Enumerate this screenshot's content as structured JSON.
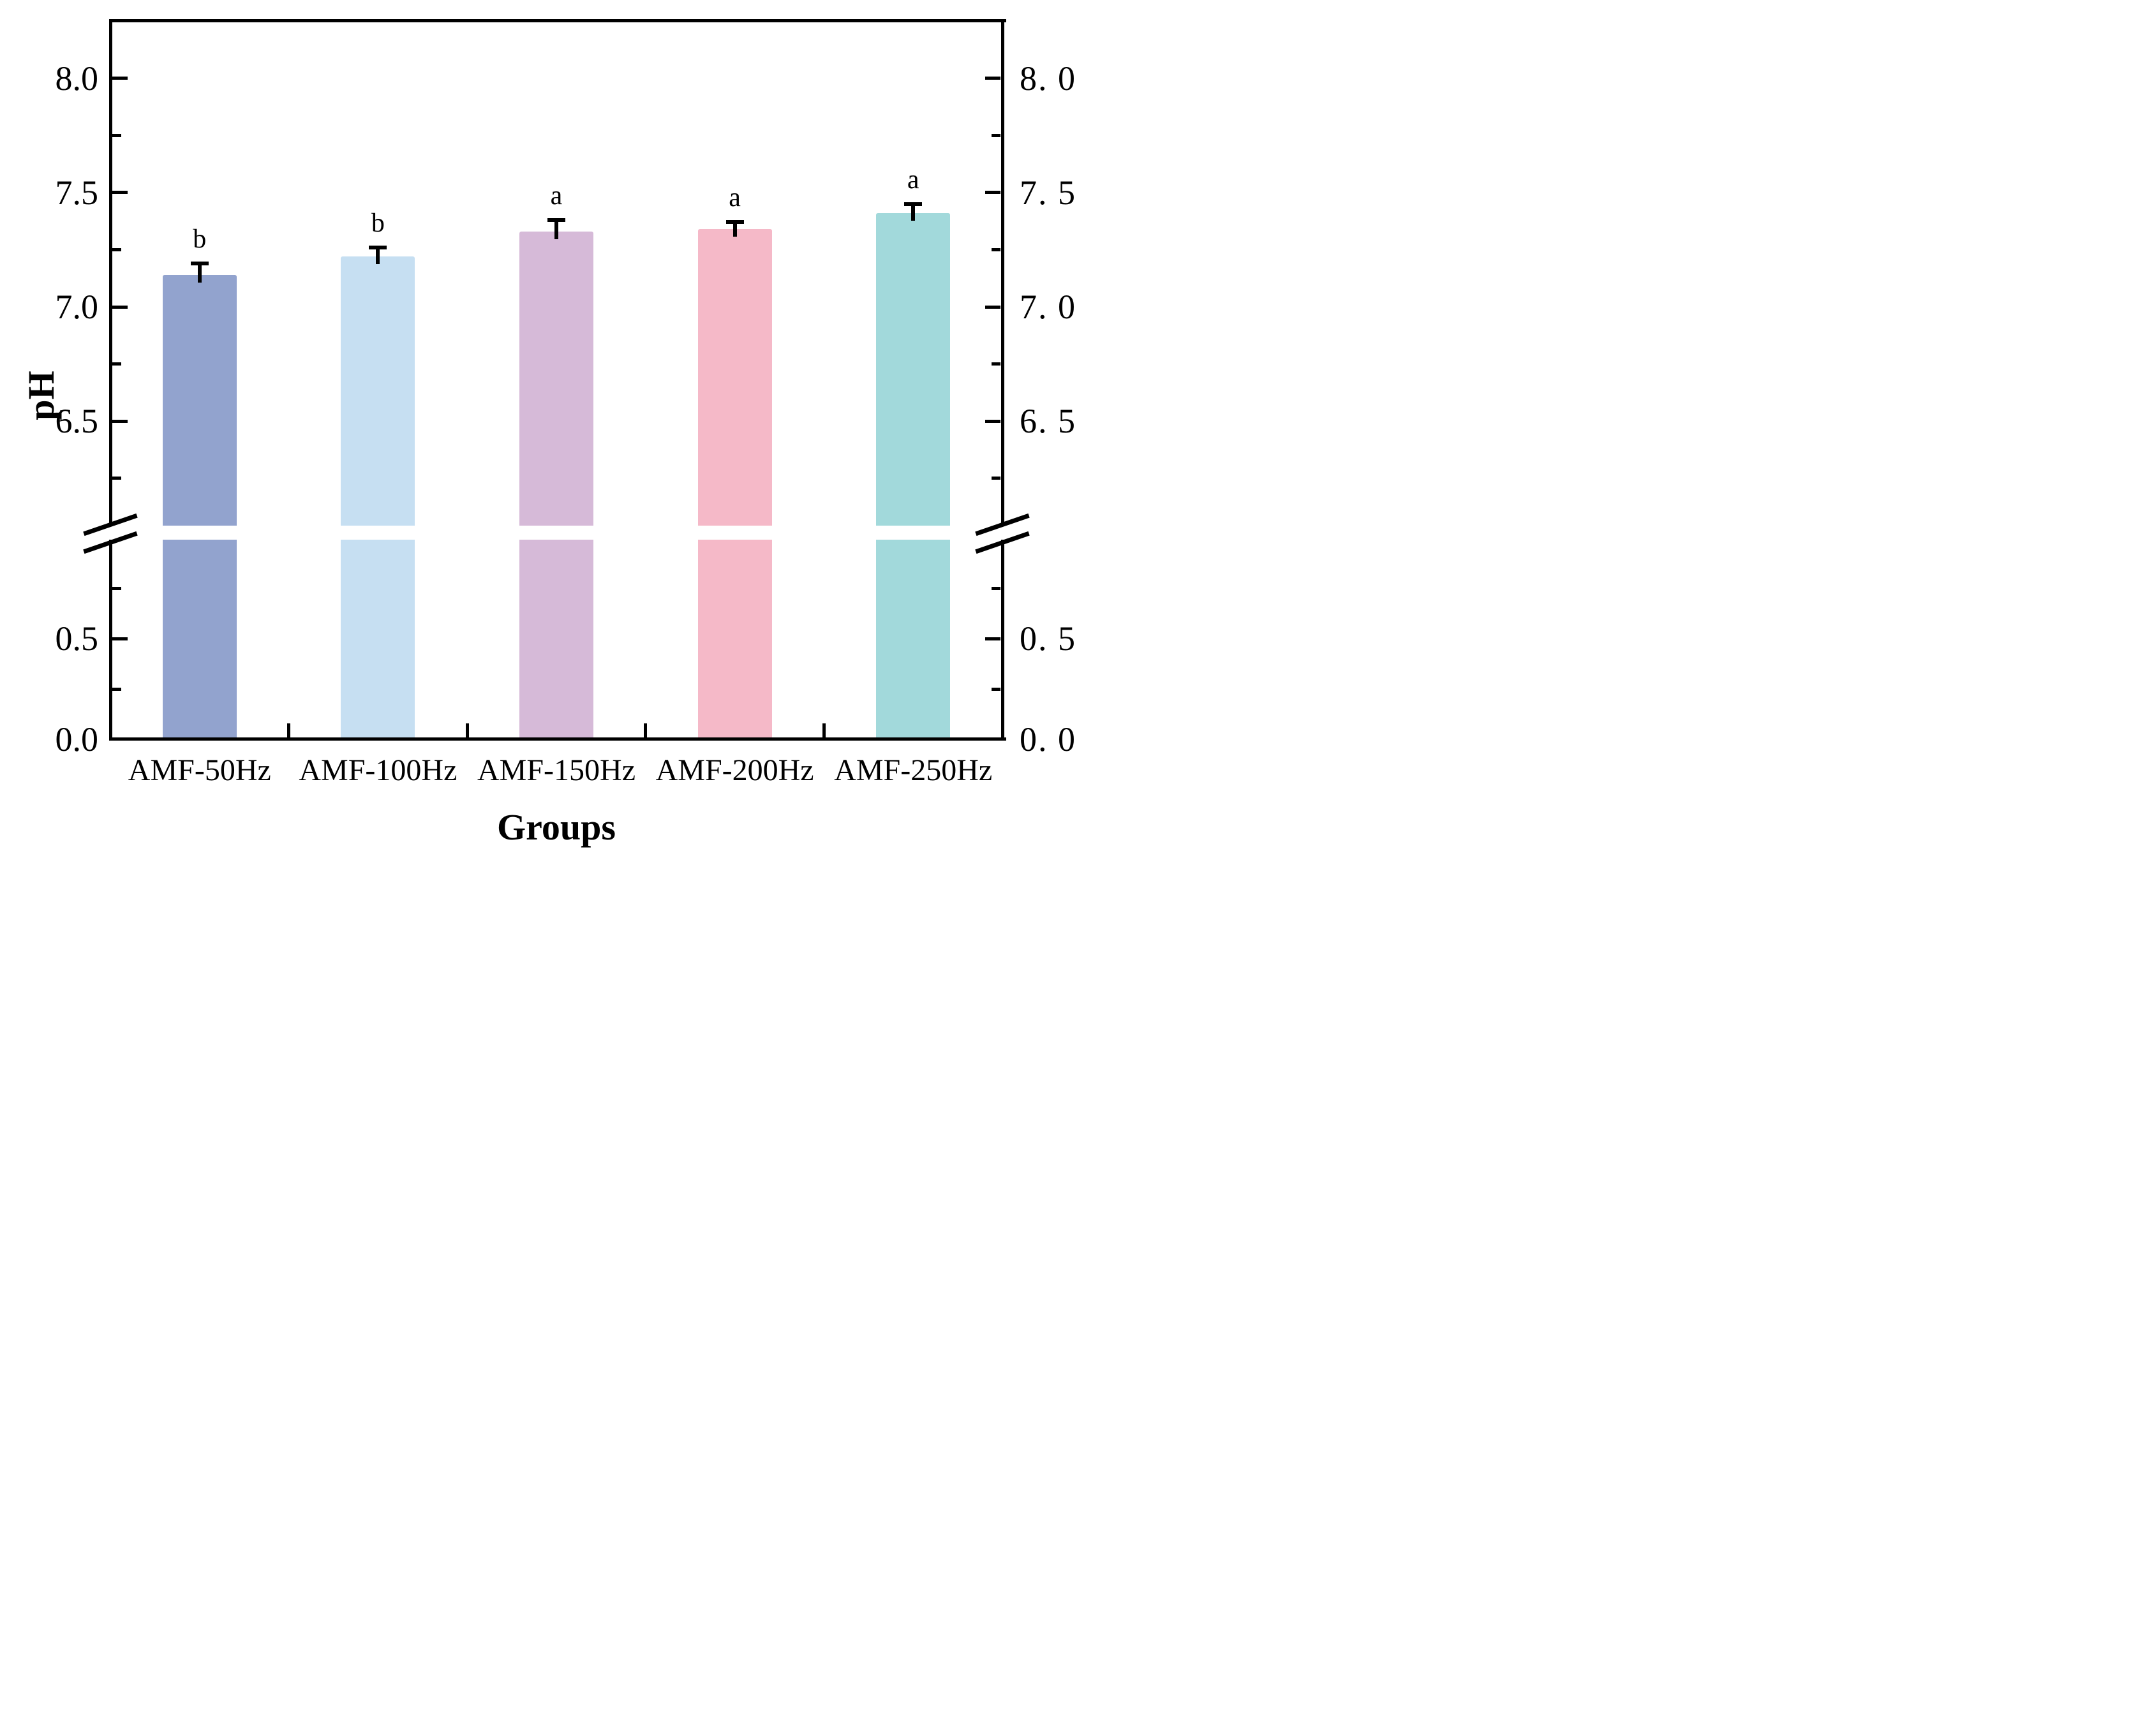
{
  "figure": {
    "ylabel": "pH",
    "xlabel": "Groups"
  },
  "axes": {
    "left_tick_labels": [
      "8.0",
      "7.5",
      "7.0",
      "6.5",
      "0.5",
      "0.0"
    ],
    "right_tick_labels": [
      "8. 0",
      "7. 5",
      "7. 0",
      "6. 5",
      "0. 5",
      "0. 0"
    ],
    "left_major_tick_values_upper": [
      8.0,
      7.5,
      7.0,
      6.5
    ],
    "left_major_tick_values_lower": [
      0.5,
      0.0
    ]
  },
  "chart_data": {
    "type": "bar",
    "title": "",
    "xlabel": "Groups",
    "ylabel": "pH",
    "categories": [
      "AMF-50Hz",
      "AMF-100Hz",
      "AMF-150Hz",
      "AMF-200Hz",
      "AMF-250Hz"
    ],
    "values": [
      7.14,
      7.22,
      7.33,
      7.34,
      7.41
    ],
    "errors": [
      0.05,
      0.04,
      0.05,
      0.03,
      0.04
    ],
    "sig_letters": [
      "b",
      "b",
      "a",
      "a",
      "a"
    ],
    "bar_colors": [
      "#92A3CE",
      "#C6DFF2",
      "#D6BAD8",
      "#F5B9C8",
      "#A2D9DB"
    ],
    "axis_break": {
      "lower_panel_max": 1.0,
      "upper_panel_min": 6.05
    },
    "ylim_upper_panel": [
      6.05,
      8.25
    ],
    "ylim_lower_panel": [
      0.0,
      1.0
    ],
    "y_major_step": 0.5,
    "y_minor_step": 0.25,
    "grid": false,
    "legend": null,
    "error_bar_direction": "upper-only"
  }
}
